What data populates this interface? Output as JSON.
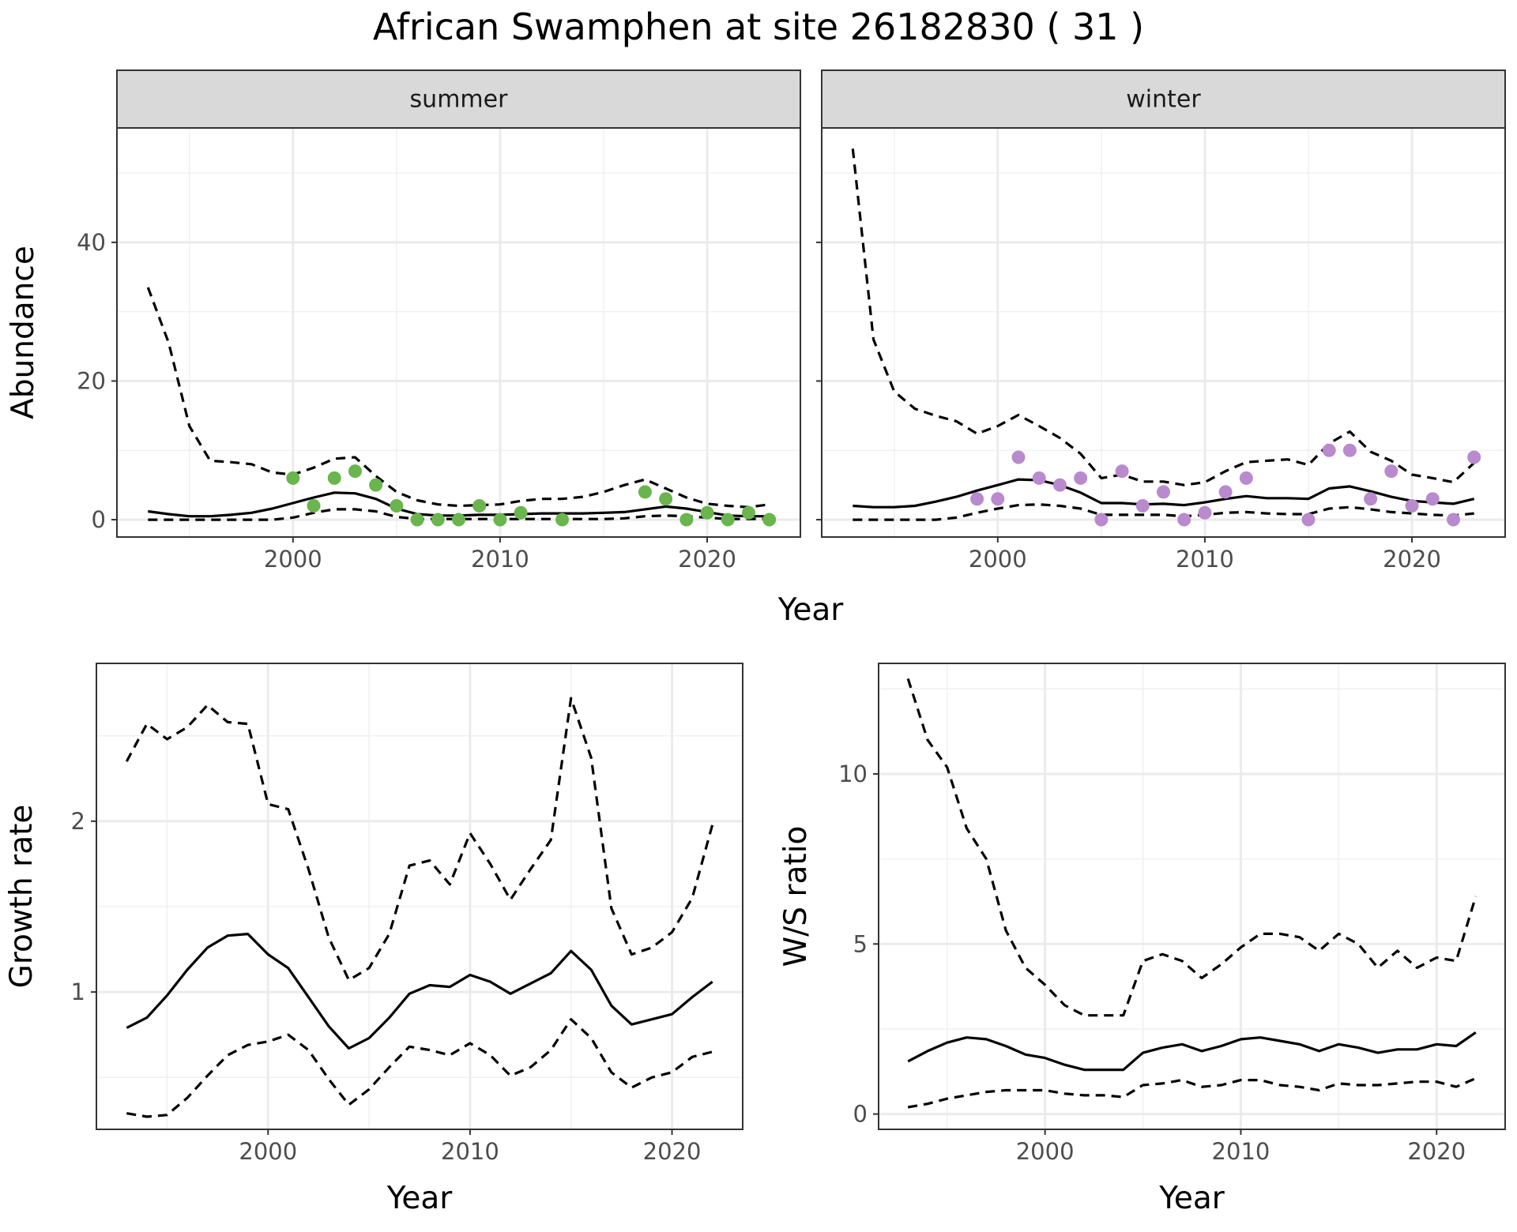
{
  "title": "African Swamphen at site 26182830 ( 31 )",
  "colors": {
    "summer": "#6ab54d",
    "winter": "#b98acd",
    "line": "#000000"
  },
  "chart_data": [
    {
      "type": "line",
      "panel": "summer",
      "strip_label": "summer",
      "xlabel": "Year",
      "ylabel": "Abundance",
      "xlim": [
        1991.5,
        2024.5
      ],
      "ylim": [
        -2.5,
        56.5
      ],
      "xticks": [
        2000,
        2010,
        2020
      ],
      "yticks": [
        0,
        20,
        40
      ],
      "grid": true,
      "x": [
        1993,
        1994,
        1995,
        1996,
        1997,
        1998,
        1999,
        2000,
        2001,
        2002,
        2003,
        2004,
        2005,
        2006,
        2007,
        2008,
        2009,
        2010,
        2011,
        2012,
        2013,
        2014,
        2015,
        2016,
        2017,
        2018,
        2019,
        2020,
        2021,
        2022,
        2023
      ],
      "series": [
        {
          "style": "solid",
          "values": [
            1.2,
            0.8,
            0.5,
            0.5,
            0.7,
            1.0,
            1.6,
            2.4,
            3.2,
            3.9,
            3.8,
            3.0,
            1.6,
            0.8,
            0.6,
            0.6,
            0.7,
            0.7,
            0.8,
            0.9,
            0.9,
            0.9,
            1.0,
            1.1,
            1.5,
            1.9,
            1.6,
            1.1,
            0.6,
            0.5,
            0.5
          ]
        },
        {
          "style": "dashed",
          "values": [
            33.5,
            25.5,
            13.5,
            8.5,
            8.3,
            8.0,
            6.8,
            6.5,
            7.5,
            8.8,
            9.0,
            6.3,
            4.0,
            2.8,
            2.2,
            2.0,
            2.1,
            2.2,
            2.7,
            3.0,
            3.0,
            3.3,
            4.0,
            5.0,
            5.8,
            4.5,
            3.2,
            2.3,
            2.0,
            1.8,
            2.2
          ]
        },
        {
          "style": "dashed",
          "values": [
            0,
            0,
            0,
            0,
            0,
            0,
            0,
            0.3,
            1.0,
            1.5,
            1.5,
            1.2,
            0.4,
            0.1,
            0.1,
            0.1,
            0.1,
            0.1,
            0.1,
            0.1,
            0.1,
            0.1,
            0.1,
            0.2,
            0.5,
            0.6,
            0.5,
            0.3,
            0.1,
            0.1,
            0.1
          ]
        }
      ],
      "points": [
        {
          "x": 2000,
          "y": 6
        },
        {
          "x": 2001,
          "y": 2
        },
        {
          "x": 2002,
          "y": 6
        },
        {
          "x": 2003,
          "y": 7
        },
        {
          "x": 2004,
          "y": 5
        },
        {
          "x": 2005,
          "y": 2
        },
        {
          "x": 2006,
          "y": 0
        },
        {
          "x": 2007,
          "y": 0
        },
        {
          "x": 2008,
          "y": 0
        },
        {
          "x": 2009,
          "y": 2
        },
        {
          "x": 2010,
          "y": 0
        },
        {
          "x": 2011,
          "y": 1
        },
        {
          "x": 2013,
          "y": 0
        },
        {
          "x": 2017,
          "y": 4
        },
        {
          "x": 2018,
          "y": 3
        },
        {
          "x": 2019,
          "y": 0
        },
        {
          "x": 2020,
          "y": 1
        },
        {
          "x": 2021,
          "y": 0
        },
        {
          "x": 2022,
          "y": 1
        },
        {
          "x": 2023,
          "y": 0
        }
      ]
    },
    {
      "type": "line",
      "panel": "winter",
      "strip_label": "winter",
      "xlabel": "Year",
      "xlim": [
        1991.5,
        2024.5
      ],
      "ylim": [
        -2.5,
        56.5
      ],
      "xticks": [
        2000,
        2010,
        2020
      ],
      "yticks": [
        0,
        20,
        40
      ],
      "grid": true,
      "x": [
        1993,
        1994,
        1995,
        1996,
        1997,
        1998,
        1999,
        2000,
        2001,
        2002,
        2003,
        2004,
        2005,
        2006,
        2007,
        2008,
        2009,
        2010,
        2011,
        2012,
        2013,
        2014,
        2015,
        2016,
        2017,
        2018,
        2019,
        2020,
        2021,
        2022,
        2023
      ],
      "series": [
        {
          "style": "solid",
          "values": [
            2.0,
            1.8,
            1.8,
            2.0,
            2.6,
            3.3,
            4.2,
            5.0,
            5.8,
            5.7,
            5.0,
            3.9,
            2.4,
            2.4,
            2.2,
            2.3,
            2.1,
            2.5,
            3.0,
            3.4,
            3.1,
            3.1,
            3.0,
            4.5,
            4.8,
            4.1,
            3.3,
            2.7,
            2.5,
            2.3,
            3.0
          ]
        },
        {
          "style": "dashed",
          "values": [
            53.5,
            26.0,
            18.5,
            16.0,
            15.0,
            14.2,
            12.4,
            13.5,
            15.1,
            13.5,
            11.8,
            9.5,
            6.0,
            6.5,
            5.5,
            5.5,
            5.0,
            5.4,
            7.0,
            8.3,
            8.5,
            8.7,
            7.9,
            11.0,
            12.7,
            9.8,
            8.5,
            6.5,
            6.0,
            5.4,
            8.2
          ]
        },
        {
          "style": "dashed",
          "values": [
            0,
            0,
            0,
            0,
            0,
            0.3,
            1.0,
            1.6,
            2.1,
            2.2,
            2.0,
            1.6,
            0.7,
            0.7,
            0.7,
            0.7,
            0.5,
            0.7,
            1.0,
            1.1,
            0.9,
            0.8,
            0.8,
            1.6,
            1.8,
            1.5,
            1.1,
            0.9,
            0.7,
            0.6,
            0.9
          ]
        }
      ],
      "points": [
        {
          "x": 1999,
          "y": 3
        },
        {
          "x": 2000,
          "y": 3
        },
        {
          "x": 2001,
          "y": 9
        },
        {
          "x": 2002,
          "y": 6
        },
        {
          "x": 2003,
          "y": 5
        },
        {
          "x": 2004,
          "y": 6
        },
        {
          "x": 2005,
          "y": 0
        },
        {
          "x": 2006,
          "y": 7
        },
        {
          "x": 2007,
          "y": 2
        },
        {
          "x": 2008,
          "y": 4
        },
        {
          "x": 2009,
          "y": 0
        },
        {
          "x": 2010,
          "y": 1
        },
        {
          "x": 2011,
          "y": 4
        },
        {
          "x": 2012,
          "y": 6
        },
        {
          "x": 2015,
          "y": 0
        },
        {
          "x": 2016,
          "y": 10
        },
        {
          "x": 2017,
          "y": 10
        },
        {
          "x": 2018,
          "y": 3
        },
        {
          "x": 2019,
          "y": 7
        },
        {
          "x": 2020,
          "y": 2
        },
        {
          "x": 2021,
          "y": 3
        },
        {
          "x": 2022,
          "y": 0
        },
        {
          "x": 2023,
          "y": 9
        }
      ]
    },
    {
      "type": "line",
      "panel": "growth",
      "xlabel": "Year",
      "ylabel": "Growth rate",
      "xlim": [
        1991.5,
        2023.5
      ],
      "ylim": [
        0.196,
        2.924
      ],
      "xticks": [
        2000,
        2010,
        2020
      ],
      "yticks": [
        1,
        2
      ],
      "grid": true,
      "x": [
        1993,
        1994,
        1995,
        1996,
        1997,
        1998,
        1999,
        2000,
        2001,
        2002,
        2003,
        2004,
        2005,
        2006,
        2007,
        2008,
        2009,
        2010,
        2011,
        2012,
        2013,
        2014,
        2015,
        2016,
        2017,
        2018,
        2019,
        2020,
        2021,
        2022
      ],
      "series": [
        {
          "style": "solid",
          "values": [
            0.79,
            0.85,
            0.98,
            1.13,
            1.26,
            1.33,
            1.34,
            1.22,
            1.14,
            0.97,
            0.8,
            0.67,
            0.73,
            0.85,
            0.99,
            1.04,
            1.03,
            1.1,
            1.06,
            0.99,
            1.05,
            1.11,
            1.24,
            1.13,
            0.92,
            0.81,
            0.84,
            0.87,
            0.97,
            1.06
          ]
        },
        {
          "style": "dashed",
          "values": [
            2.35,
            2.57,
            2.48,
            2.55,
            2.68,
            2.58,
            2.57,
            2.1,
            2.07,
            1.72,
            1.32,
            1.07,
            1.14,
            1.34,
            1.74,
            1.77,
            1.63,
            1.93,
            1.75,
            1.54,
            1.72,
            1.89,
            2.72,
            2.37,
            1.49,
            1.22,
            1.26,
            1.35,
            1.55,
            1.98
          ]
        },
        {
          "style": "dashed",
          "values": [
            0.29,
            0.27,
            0.28,
            0.38,
            0.51,
            0.63,
            0.69,
            0.71,
            0.75,
            0.66,
            0.49,
            0.34,
            0.43,
            0.56,
            0.68,
            0.66,
            0.63,
            0.7,
            0.63,
            0.51,
            0.56,
            0.66,
            0.84,
            0.73,
            0.53,
            0.44,
            0.5,
            0.53,
            0.62,
            0.65
          ]
        }
      ]
    },
    {
      "type": "line",
      "panel": "ws_ratio",
      "xlabel": "Year",
      "ylabel": "W/S ratio",
      "xlim": [
        1991.5,
        2023.5
      ],
      "ylim": [
        -0.45,
        13.25
      ],
      "xticks": [
        2000,
        2010,
        2020
      ],
      "yticks": [
        0,
        5,
        10
      ],
      "grid": true,
      "x": [
        1993,
        1994,
        1995,
        1996,
        1997,
        1998,
        1999,
        2000,
        2001,
        2002,
        2003,
        2004,
        2005,
        2006,
        2007,
        2008,
        2009,
        2010,
        2011,
        2012,
        2013,
        2014,
        2015,
        2016,
        2017,
        2018,
        2019,
        2020,
        2021,
        2022
      ],
      "series": [
        {
          "style": "solid",
          "values": [
            1.55,
            1.85,
            2.1,
            2.25,
            2.2,
            2.0,
            1.75,
            1.65,
            1.45,
            1.3,
            1.3,
            1.3,
            1.8,
            1.95,
            2.05,
            1.85,
            2.0,
            2.2,
            2.25,
            2.15,
            2.05,
            1.85,
            2.05,
            1.95,
            1.8,
            1.9,
            1.9,
            2.05,
            2.0,
            2.4
          ]
        },
        {
          "style": "dashed",
          "values": [
            12.8,
            11.0,
            10.2,
            8.4,
            7.5,
            5.4,
            4.3,
            3.8,
            3.2,
            2.9,
            2.9,
            2.9,
            4.5,
            4.7,
            4.5,
            4.0,
            4.4,
            4.9,
            5.3,
            5.3,
            5.2,
            4.8,
            5.3,
            5.0,
            4.3,
            4.8,
            4.3,
            4.6,
            4.5,
            6.4
          ]
        },
        {
          "style": "dashed",
          "values": [
            0.2,
            0.3,
            0.45,
            0.55,
            0.65,
            0.7,
            0.7,
            0.7,
            0.6,
            0.55,
            0.55,
            0.5,
            0.85,
            0.9,
            1.0,
            0.8,
            0.85,
            1.0,
            1.0,
            0.85,
            0.8,
            0.7,
            0.9,
            0.85,
            0.85,
            0.9,
            0.95,
            0.95,
            0.8,
            1.05
          ]
        }
      ]
    }
  ]
}
